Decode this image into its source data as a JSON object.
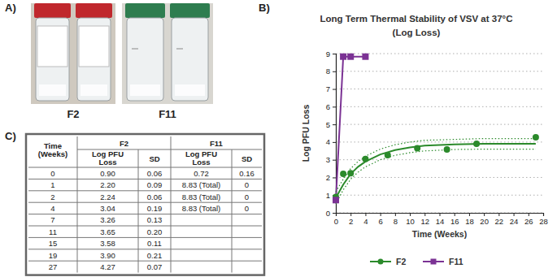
{
  "figure": {
    "panel_labels": [
      "A)",
      "B)",
      "C)"
    ],
    "photos": [
      {
        "caption": "F2"
      },
      {
        "caption": "F11"
      }
    ]
  },
  "chart_data": {
    "type": "line",
    "title": "Long Term Thermal Stability of VSV at 37°C",
    "subtitle": "(Log Loss)",
    "x_label": "Time (Weeks)",
    "y_label": "Log PFU Loss",
    "xlim": [
      0,
      28
    ],
    "xticks": [
      0,
      2,
      4,
      6,
      8,
      10,
      12,
      14,
      16,
      18,
      20,
      22,
      24,
      26,
      28
    ],
    "ylim": [
      0,
      9
    ],
    "yticks": [
      0,
      1,
      2,
      3,
      4,
      5,
      6,
      7,
      8,
      9
    ],
    "grid": true,
    "legend": "bottom",
    "series": [
      {
        "name": "F2",
        "type": "scatter",
        "marker": "circle",
        "color": "#2b8a2b",
        "x": [
          0,
          1,
          2,
          4,
          7,
          11,
          15,
          19,
          27
        ],
        "values": [
          0.9,
          2.2,
          2.24,
          3.04,
          3.26,
          3.65,
          3.58,
          3.9,
          4.27
        ]
      },
      {
        "name": "F11",
        "type": "line",
        "marker": "square",
        "color": "#7b3294",
        "x": [
          0,
          1,
          2,
          4
        ],
        "values": [
          0.72,
          8.83,
          8.83,
          8.83
        ]
      },
      {
        "type": "line",
        "line_style": "solid",
        "color": "#2b8a2b",
        "x": [
          0,
          1,
          2,
          3,
          4,
          6,
          8,
          10,
          12,
          16,
          20,
          24,
          27
        ],
        "values": [
          0.85,
          1.6,
          2.2,
          2.6,
          2.9,
          3.3,
          3.55,
          3.7,
          3.8,
          3.87,
          3.9,
          3.9,
          3.9
        ]
      },
      {
        "type": "line",
        "line_style": "dotted",
        "color": "#2b8a2b",
        "x": [
          0,
          1,
          2,
          3,
          4,
          6,
          8,
          10,
          12,
          16,
          20,
          24,
          27
        ],
        "values": [
          1.2,
          1.9,
          2.5,
          2.9,
          3.2,
          3.6,
          3.85,
          4.0,
          4.1,
          4.15,
          4.2,
          4.2,
          4.2
        ]
      },
      {
        "type": "line",
        "line_style": "dotted",
        "color": "#2b8a2b",
        "x": [
          0,
          1,
          2,
          3,
          4,
          6,
          8,
          10,
          12,
          16,
          20,
          24,
          27
        ],
        "values": [
          0.5,
          1.3,
          1.9,
          2.3,
          2.6,
          3.0,
          3.25,
          3.4,
          3.5,
          3.58,
          3.6,
          3.6,
          3.6
        ]
      }
    ]
  },
  "table": {
    "header": [
      "Time (Weeks)",
      "F2",
      "F11"
    ],
    "subheader": [
      "Log PFU Loss",
      "SD",
      "Log PFU Loss",
      "SD"
    ],
    "rows": [
      [
        "0",
        "0.90",
        "0.06",
        "0.72",
        "0.16"
      ],
      [
        "1",
        "2.20",
        "0.09",
        "8.83 (Total)",
        "0"
      ],
      [
        "2",
        "2.24",
        "0.06",
        "8.83 (Total)",
        "0"
      ],
      [
        "4",
        "3.04",
        "0.19",
        "8.83 (Total)",
        "0"
      ],
      [
        "7",
        "3.26",
        "0.13",
        null,
        null
      ],
      [
        "11",
        "3.65",
        "0.20",
        null,
        null
      ],
      [
        "15",
        "3.58",
        "0.11",
        null,
        null
      ],
      [
        "19",
        "3.90",
        "0.21",
        null,
        null
      ],
      [
        "27",
        "4.27",
        "0.07",
        null,
        null
      ]
    ]
  }
}
